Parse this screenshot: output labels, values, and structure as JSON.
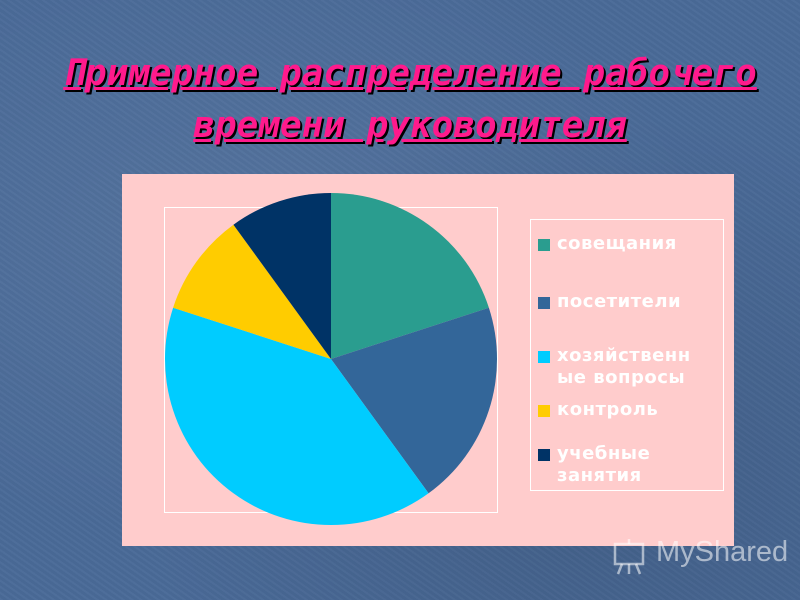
{
  "slide": {
    "title": "Примерное распределение рабочего времени руководителя"
  },
  "watermark": {
    "text": "MyShared",
    "icon": "presentation-icon"
  },
  "chart_data": {
    "type": "pie",
    "title": "",
    "start_angle_deg": 0,
    "direction": "clockwise",
    "legend_position": "right",
    "slices": [
      {
        "label": "совещания",
        "value": 20,
        "color": "#2a9d8f"
      },
      {
        "label": "посетители",
        "value": 20,
        "color": "#336699"
      },
      {
        "label": "хозяйственные вопросы",
        "value": 40,
        "color": "#00ccff"
      },
      {
        "label": "контроль",
        "value": 10,
        "color": "#ffcc00"
      },
      {
        "label": "учебные занятия",
        "value": 10,
        "color": "#003366"
      }
    ],
    "legend_lines": [
      [
        "совещания"
      ],
      [
        "посетители"
      ],
      [
        "хозяйственн",
        "ые вопросы"
      ],
      [
        "контроль"
      ],
      [
        "учебные",
        "занятия"
      ]
    ]
  }
}
